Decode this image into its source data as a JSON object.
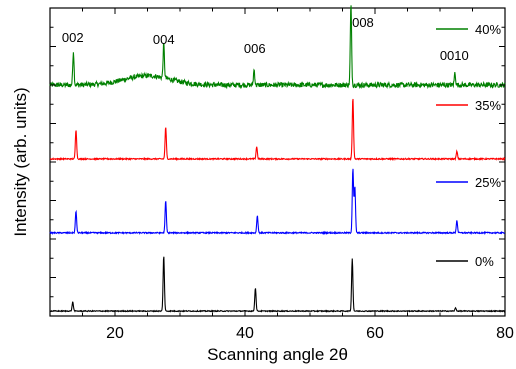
{
  "chart_data": {
    "type": "line",
    "title": "",
    "xlabel": "Scanning angle 2θ",
    "ylabel": "Intensity (arb. units)",
    "xlim": [
      10,
      80
    ],
    "xticks": [
      20,
      40,
      60,
      80
    ],
    "xtick_labels": [
      "20",
      "40",
      "60",
      "80"
    ],
    "y_tick_labels_shown": false,
    "grid": false,
    "legend_placement": "per-series, right side above each trace",
    "peak_annotations": [
      {
        "text": "002",
        "x": 13.5
      },
      {
        "text": "004",
        "x": 27.5
      },
      {
        "text": "006",
        "x": 41.5
      },
      {
        "text": "008",
        "x": 56.3
      },
      {
        "text": "0010",
        "x": 72.2
      }
    ],
    "series": [
      {
        "name": "40%",
        "color": "#008000",
        "baseline": 3.75,
        "noise": 0.08,
        "broad_hump": {
          "center": 25,
          "width": 5,
          "height": 0.15
        },
        "peaks": [
          [
            13.6,
            0.55
          ],
          [
            27.5,
            0.55
          ],
          [
            41.4,
            0.25
          ],
          [
            56.3,
            1.3
          ],
          [
            72.3,
            0.2
          ]
        ]
      },
      {
        "name": "35%",
        "color": "#ff0000",
        "baseline": 2.55,
        "noise": 0.02,
        "peaks": [
          [
            14.0,
            0.48
          ],
          [
            27.8,
            0.52
          ],
          [
            41.8,
            0.2
          ],
          [
            56.6,
            1.0
          ],
          [
            72.6,
            0.12
          ]
        ]
      },
      {
        "name": "25%",
        "color": "#0000ff",
        "baseline": 1.35,
        "noise": 0.02,
        "peaks": [
          [
            14.0,
            0.35
          ],
          [
            27.8,
            0.52
          ],
          [
            41.9,
            0.28
          ],
          [
            56.6,
            1.05
          ],
          [
            56.9,
            0.75
          ],
          [
            72.6,
            0.2
          ]
        ]
      },
      {
        "name": "0%",
        "color": "#000000",
        "baseline": 0.08,
        "noise": 0.015,
        "peaks": [
          [
            13.5,
            0.15
          ],
          [
            27.5,
            0.9
          ],
          [
            41.6,
            0.38
          ],
          [
            56.5,
            0.86
          ],
          [
            72.4,
            0.05
          ]
        ]
      }
    ],
    "y_range_units": [
      0,
      5.0
    ]
  }
}
